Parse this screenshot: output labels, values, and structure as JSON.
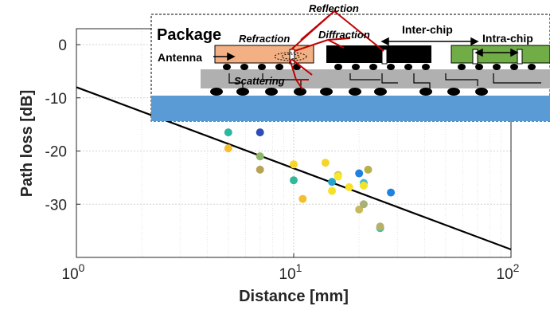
{
  "chart_data": {
    "type": "scatter",
    "xlabel": "Distance [mm]",
    "ylabel": "Path loss [dB]",
    "xscale": "log",
    "xlim": [
      1,
      100
    ],
    "ylim": [
      -40,
      3
    ],
    "x_ticks": [
      {
        "value": 1,
        "base": "10",
        "exp": "0"
      },
      {
        "value": 10,
        "base": "10",
        "exp": "1"
      },
      {
        "value": 100,
        "base": "10",
        "exp": "2"
      }
    ],
    "y_ticks": [
      {
        "value": 0,
        "label": "0"
      },
      {
        "value": -10,
        "label": "-10"
      },
      {
        "value": -20,
        "label": "-20"
      },
      {
        "value": -30,
        "label": "-30"
      }
    ],
    "grid": true,
    "series": [
      {
        "kind": "points",
        "points": [
          {
            "x": 5,
            "y": -16.5,
            "color": "#2eb7a0"
          },
          {
            "x": 5,
            "y": -19.5,
            "color": "#f5bf2f"
          },
          {
            "x": 7,
            "y": -16.5,
            "color": "#2e4bb8"
          },
          {
            "x": 7,
            "y": -21,
            "color": "#8fb76a"
          },
          {
            "x": 7,
            "y": -23.5,
            "color": "#b8a355"
          },
          {
            "x": 10,
            "y": -22.5,
            "color": "#f9d52a"
          },
          {
            "x": 10,
            "y": -25.5,
            "color": "#34b89c"
          },
          {
            "x": 11,
            "y": -29,
            "color": "#f5be2f"
          },
          {
            "x": 14,
            "y": -22.2,
            "color": "#f5d52a"
          },
          {
            "x": 15,
            "y": -25.8,
            "color": "#27a5c8"
          },
          {
            "x": 15,
            "y": -27.5,
            "color": "#f3e326"
          },
          {
            "x": 16,
            "y": -24.5,
            "color": "#d7c84c"
          },
          {
            "x": 16,
            "y": -24.8,
            "color": "#f9e82a"
          },
          {
            "x": 18,
            "y": -26.8,
            "color": "#f6e125"
          },
          {
            "x": 20,
            "y": -24.2,
            "color": "#1e81dd"
          },
          {
            "x": 20,
            "y": -31,
            "color": "#c8ba5a"
          },
          {
            "x": 21,
            "y": -30,
            "color": "#a8b07a"
          },
          {
            "x": 21,
            "y": -26,
            "color": "#47b8d5"
          },
          {
            "x": 21,
            "y": -26.5,
            "color": "#f2e228"
          },
          {
            "x": 22,
            "y": -23.5,
            "color": "#b8b04a"
          },
          {
            "x": 25,
            "y": -34.5,
            "color": "#56b8a0"
          },
          {
            "x": 25,
            "y": -34.2,
            "color": "#b5b06a"
          },
          {
            "x": 28,
            "y": -27.8,
            "color": "#1e83e0"
          }
        ]
      },
      {
        "kind": "fit-line",
        "color": "#000000",
        "points": [
          {
            "x": 1,
            "y": -8
          },
          {
            "x": 100,
            "y": -38.5
          }
        ]
      }
    ],
    "inset": {
      "title": "Package",
      "labels": {
        "antenna": "Antenna",
        "refraction": "Refraction",
        "reflection": "Reflection",
        "diffraction": "Diffraction",
        "inter_chip": "Inter-chip",
        "intra_chip": "Intra-chip",
        "scattering": "Scattering"
      },
      "colors": {
        "chip_left": "#f2b084",
        "chip_mid": "#000000",
        "chip_right": "#70ad47",
        "substrate": "#b0b0b0",
        "board": "#5b9bd5",
        "arrows": "#c00000"
      }
    }
  }
}
